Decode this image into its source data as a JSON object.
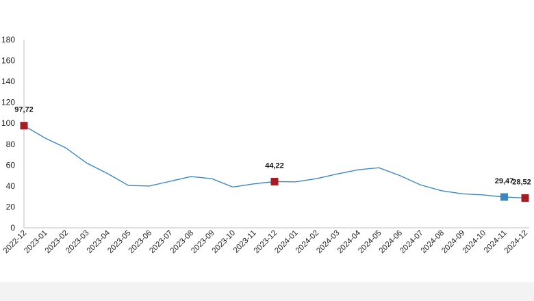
{
  "chart_data": {
    "type": "line",
    "title": "",
    "xlabel": "",
    "ylabel": "",
    "ylim": [
      0,
      180
    ],
    "y_ticks": [
      "0",
      "20",
      "40",
      "60",
      "80",
      "100",
      "120",
      "140",
      "160",
      "180"
    ],
    "grid": false,
    "legend": "none",
    "line_color": "#3a87c2",
    "categories": [
      "2022-12",
      "2023-01",
      "2023-02",
      "2023-03",
      "2023-04",
      "2023-05",
      "2023-06",
      "2023-07",
      "2023-08",
      "2023-09",
      "2023-10",
      "2023-11",
      "2023-12",
      "2024-01",
      "2024-02",
      "2024-03",
      "2024-04",
      "2024-05",
      "2024-06",
      "2024-07",
      "2024-08",
      "2024-09",
      "2024-10",
      "2024-11",
      "2024-12"
    ],
    "series": [
      {
        "values": [
          97.72,
          86,
          76.5,
          62,
          52,
          40.5,
          40,
          44.5,
          49,
          47,
          39,
          42,
          44.22,
          44,
          47,
          51.5,
          55.5,
          57.5,
          50,
          41,
          35.5,
          32.5,
          31.5,
          29.47,
          28.52
        ]
      }
    ],
    "highlighted_points": [
      {
        "category": "2022-12",
        "value": 97.72,
        "label": "97,72",
        "color": "#a51d24"
      },
      {
        "category": "2023-12",
        "value": 44.22,
        "label": "44,22",
        "color": "#a51d24"
      },
      {
        "category": "2024-11",
        "value": 29.47,
        "label": "29,47",
        "color": "#3a87c2"
      },
      {
        "category": "2024-12",
        "value": 28.52,
        "label": "28,52",
        "color": "#a51d24"
      }
    ]
  }
}
